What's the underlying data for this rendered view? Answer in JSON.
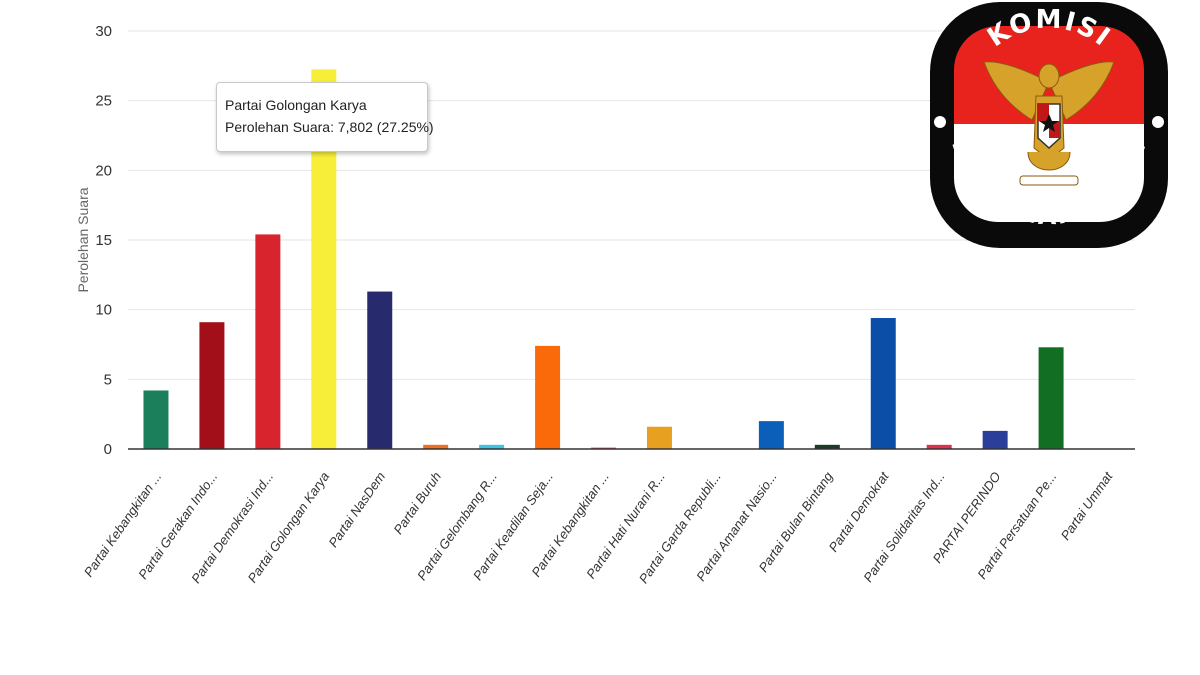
{
  "chart_data": {
    "type": "bar",
    "ylabel": "Perolehan Suara",
    "ylim": [
      0,
      30
    ],
    "yticks": [
      0,
      5,
      10,
      15,
      20,
      25,
      30
    ],
    "grid": true,
    "categories": [
      "Partai Kebangkitan ...",
      "Partai Gerakan Indo...",
      "Partai Demokrasi Ind...",
      "Partai Golongan Karya",
      "Partai NasDem",
      "Partai Buruh",
      "Partai Gelombang R...",
      "Partai Keadilan Seja...",
      "Partai Kebangkitan ...",
      "Partai Hati Nurani R...",
      "Partai Garda Republi...",
      "Partai Amanat Nasio...",
      "Partai Bulan Bintang",
      "Partai Demokrat",
      "Partai Solidaritas Ind...",
      "PARTAI PERINDO",
      "Partai Persatuan Pe...",
      "Partai Ummat"
    ],
    "values": [
      4.2,
      9.1,
      15.4,
      27.25,
      11.3,
      0.3,
      0.3,
      7.4,
      0.1,
      1.6,
      0.0,
      2.0,
      0.3,
      9.4,
      0.3,
      1.3,
      7.3,
      0.0
    ],
    "colors": [
      "#1a7f5a",
      "#a30f18",
      "#d8242c",
      "#f7ee3a",
      "#272b6e",
      "#f07020",
      "#3cc4e0",
      "#fb6a0a",
      "#e04060",
      "#e8a020",
      "#888888",
      "#0c5fb8",
      "#1c3a24",
      "#0a4ea8",
      "#e0304a",
      "#2a3e9a",
      "#116e22",
      "#888888"
    ],
    "tooltip": {
      "title": "Partai Golongan Karya",
      "text": "Perolehan Suara: 7,802 (27.25%)"
    }
  },
  "logo": {
    "top_text": "KOMISI",
    "bottom_text": "PEMILIHAN UMUM",
    "colors": {
      "red": "#e8231e",
      "black": "#0a0a0a",
      "gold": "#d7a22a",
      "white": "#ffffff"
    }
  }
}
